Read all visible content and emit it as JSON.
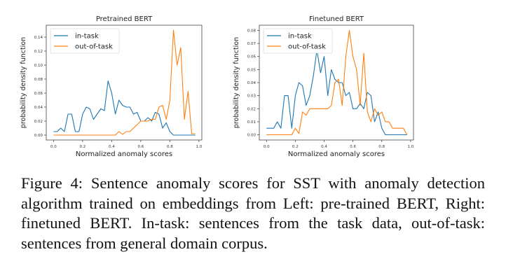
{
  "chart_data": [
    {
      "type": "line",
      "title": "Pretrained BERT",
      "xlabel": "Normalized anomaly scores",
      "ylabel": "probability density function",
      "xlim": [
        -0.05,
        1.02
      ],
      "ylim": [
        -0.007,
        0.157
      ],
      "grid": false,
      "legend": "top-left",
      "xticks": [
        "0.0",
        "0.2",
        "0.4",
        "0.6",
        "0.8",
        "1.0"
      ],
      "yticks": [
        "0.00",
        "0.02",
        "0.04",
        "0.06",
        "0.08",
        "0.10",
        "0.12",
        "0.14"
      ],
      "x_start": 0,
      "x_step": 0.025,
      "series": [
        {
          "name": "in-task",
          "color": "#1f77b4",
          "values": [
            0.005,
            0.005,
            0.01,
            0.005,
            0.03,
            0.03,
            0.005,
            0.005,
            0.03,
            0.04,
            0.0375,
            0.0225,
            0.03,
            0.0375,
            0.035,
            0.0775,
            0.06,
            0.03,
            0.05,
            0.0425,
            0.04,
            0.04,
            0.03,
            0.0325,
            0.02,
            0.02,
            0.025,
            0.02,
            0.0325,
            0.03,
            0.01,
            0.0175,
            0.005,
            0,
            0,
            0,
            0,
            0,
            0,
            0
          ]
        },
        {
          "name": "out-of-task",
          "color": "#ff7f0e",
          "values": [
            0,
            0,
            0,
            0,
            0,
            0,
            0,
            0,
            0,
            0,
            0,
            0,
            0,
            0,
            0,
            0,
            0,
            0,
            0.005,
            0.001,
            0.005,
            0.005,
            0.01,
            0.015,
            0.02,
            0.02,
            0.02,
            0.0225,
            0.0225,
            0.04,
            0.0425,
            0.0225,
            0.05,
            0.15,
            0.1,
            0.125,
            0.0225,
            0.0625,
            0.002,
            0.002
          ]
        }
      ]
    },
    {
      "type": "line",
      "title": "Finetuned BERT",
      "xlabel": "Normalized anomaly scores",
      "ylabel": "probability density function",
      "xlim": [
        -0.05,
        1.02
      ],
      "ylim": [
        -0.004,
        0.084
      ],
      "grid": false,
      "legend": "top-left",
      "xticks": [
        "0.0",
        "0.2",
        "0.4",
        "0.6",
        "0.8",
        "1.0"
      ],
      "yticks": [
        "0.00",
        "0.01",
        "0.02",
        "0.03",
        "0.04",
        "0.05",
        "0.06",
        "0.07",
        "0.08"
      ],
      "x_start": 0,
      "x_step": 0.025,
      "series": [
        {
          "name": "in-task",
          "color": "#1f77b4",
          "values": [
            0.005,
            0.005,
            0.005,
            0.01,
            0.005,
            0.03,
            0.03,
            0.005,
            0.03,
            0.04,
            0.0375,
            0.0225,
            0.03,
            0.045,
            0.065,
            0.0475,
            0.06,
            0.03,
            0.05,
            0.0425,
            0.04,
            0.04,
            0.03,
            0.0325,
            0.02,
            0.02,
            0.024,
            0.02,
            0.0325,
            0.03,
            0.01,
            0.0175,
            0.005,
            0,
            0,
            0,
            0,
            0,
            0,
            0
          ]
        },
        {
          "name": "out-of-task",
          "color": "#ff7f0e",
          "values": [
            0,
            0,
            0,
            0,
            0,
            0,
            0,
            0,
            0.005,
            0.001,
            0.0175,
            0.015,
            0.02,
            0.02,
            0.02,
            0.02,
            0.02,
            0.02,
            0.0225,
            0.04,
            0.0425,
            0.0225,
            0.06,
            0.08,
            0.06,
            0.05,
            0.0225,
            0.0625,
            0.0175,
            0.01,
            0.02,
            0.015,
            0.0175,
            0.01,
            0.01,
            0.005,
            0.005,
            0.005,
            0.005,
            0
          ]
        }
      ]
    }
  ],
  "caption": "Figure 4: Sentence anomaly scores for SST with anomaly detection algorithm trained on embeddings from Left: pre-trained BERT, Right: finetuned BERT. In-task: sentences from the task data, out-of-task: sentences from general domain corpus."
}
